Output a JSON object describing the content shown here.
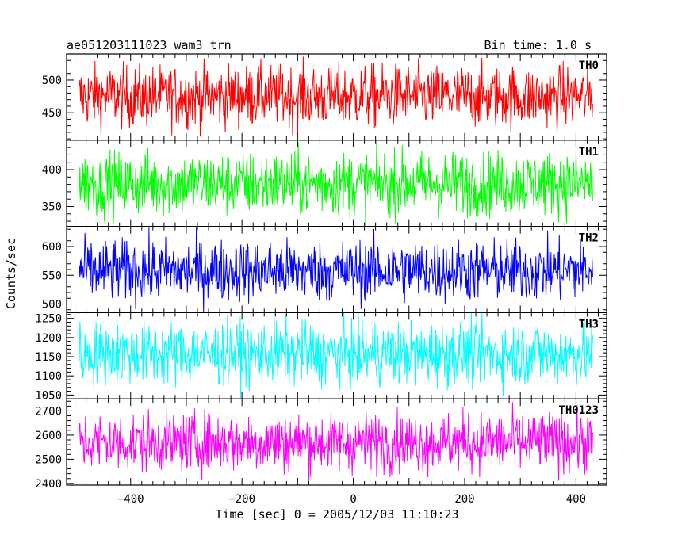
{
  "header": {
    "title": "ae051203111023_wam3_trn",
    "bin_time": "Bin time: 1.0 s"
  },
  "chart_data": {
    "type": "line",
    "xlabel": "Time [sec] 0 = 2005/12/03 11:10:23",
    "ylabel": "Counts/sec",
    "xlim": [
      -515,
      455
    ],
    "x_range": [
      -493,
      430
    ],
    "x_ticks": [
      -400,
      -200,
      0,
      200,
      400
    ],
    "x_tick_labels": [
      "−400",
      "−200",
      "0",
      "200",
      "400"
    ],
    "panels": [
      {
        "name": "TH0",
        "color": "#ff0000",
        "ylim": [
          408,
          540
        ],
        "y_ticks": [
          450,
          500
        ],
        "y_tick_labels": [
          "450",
          "500"
        ],
        "mean": 475,
        "spread": 24
      },
      {
        "name": "TH1",
        "color": "#00ff00",
        "ylim": [
          323,
          440
        ],
        "y_ticks": [
          350,
          400
        ],
        "y_tick_labels": [
          "350",
          "400"
        ],
        "mean": 381,
        "spread": 22
      },
      {
        "name": "TH2",
        "color": "#0000ff",
        "ylim": [
          485,
          635
        ],
        "y_ticks": [
          500,
          550,
          600
        ],
        "y_tick_labels": [
          "500",
          "550",
          "600"
        ],
        "mean": 558,
        "spread": 27
      },
      {
        "name": "TH3",
        "color": "#00ffff",
        "ylim": [
          1040,
          1265
        ],
        "y_ticks": [
          1050,
          1100,
          1150,
          1200,
          1250
        ],
        "y_tick_labels": [
          "1050",
          "1100",
          "1150",
          "1200",
          "1250"
        ],
        "mean": 1158,
        "spread": 42
      },
      {
        "name": "TH0123",
        "color": "#ff00ff",
        "ylim": [
          2393,
          2750
        ],
        "y_ticks": [
          2400,
          2500,
          2600,
          2700
        ],
        "y_tick_labels": [
          "2400",
          "2500",
          "2600",
          "2700"
        ],
        "mean": 2570,
        "spread": 62
      }
    ]
  }
}
